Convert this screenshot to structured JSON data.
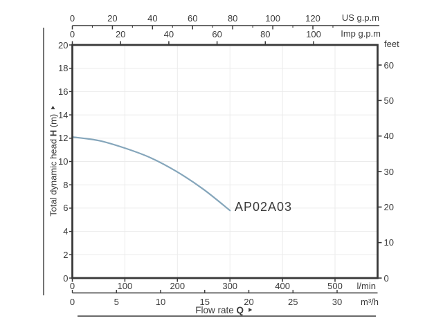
{
  "chart_data": {
    "type": "line",
    "title": "",
    "curve_label": "AP02A03",
    "series": [
      {
        "name": "AP02A03",
        "x_lmin": [
          0,
          50,
          100,
          150,
          200,
          250,
          300
        ],
        "head_m": [
          12.1,
          11.8,
          11.15,
          10.3,
          9.1,
          7.6,
          5.8
        ]
      }
    ],
    "axes": {
      "x_bottom_lmin": {
        "unit": "l/min",
        "ticks": [
          0,
          100,
          200,
          300,
          400,
          500
        ],
        "range": [
          0,
          580
        ]
      },
      "x_bottom_m3h": {
        "unit": "m³/h",
        "ticks": [
          0,
          5,
          10,
          15,
          20,
          25,
          30
        ],
        "range": [
          0,
          34.6
        ]
      },
      "x_top_us_gpm": {
        "unit": "US g.p.m",
        "ticks": [
          0,
          20,
          40,
          60,
          80,
          100,
          120
        ],
        "minor_ticks": [
          10,
          30,
          50,
          70,
          90,
          110,
          130
        ],
        "range": [
          0,
          153
        ]
      },
      "x_top_imp_gpm": {
        "unit": "Imp g.p.m",
        "ticks": [
          0,
          20,
          40,
          60,
          80,
          100
        ],
        "range": [
          0,
          127
        ]
      },
      "y_left_m": {
        "title_prefix": "Total dynamic head",
        "title_symbol": "H",
        "title_unit": "(m)",
        "ticks": [
          0,
          2,
          4,
          6,
          8,
          10,
          12,
          14,
          16,
          18,
          20
        ],
        "range": [
          0,
          20
        ]
      },
      "y_right_feet": {
        "unit": "feet",
        "ticks": [
          0,
          10,
          20,
          30,
          40,
          50,
          60
        ],
        "range": [
          0,
          65.6
        ]
      }
    },
    "x_title": {
      "prefix": "Flow rate",
      "symbol": "Q"
    },
    "grid": {
      "enabled": true,
      "x_step_lmin": 100,
      "y_step_m": 2
    },
    "legend": "none",
    "colors": {
      "curve": "#85a6bb",
      "axis": "#383838",
      "grid": "#ebebeb",
      "text": "#3b3b3b"
    }
  }
}
